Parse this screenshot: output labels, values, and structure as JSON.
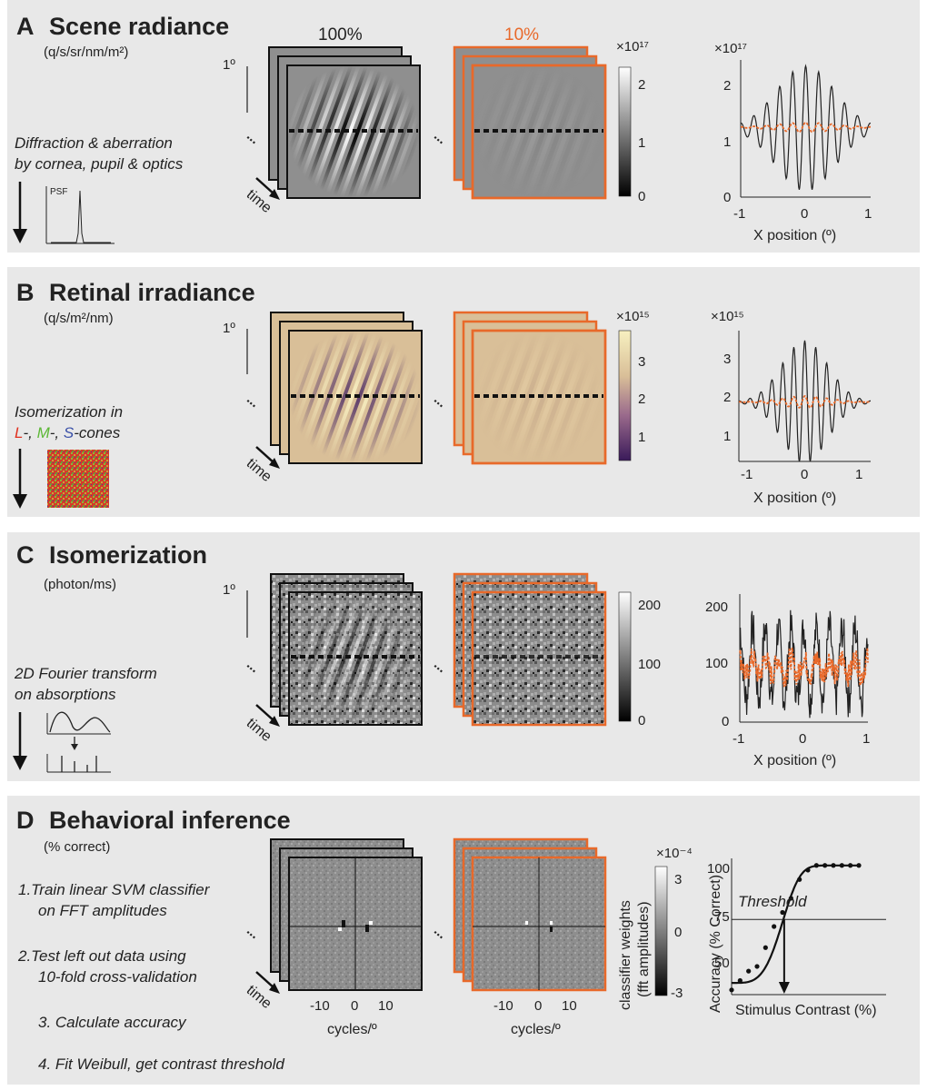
{
  "headers": {
    "full": "100%",
    "low": "10%"
  },
  "common": {
    "degree": "1º",
    "time": "time",
    "ellipsis": "..."
  },
  "colors": {
    "accent": "#e8692a",
    "panel_bg": "#e8e8e8",
    "tan": "#d9bf98"
  },
  "panelA": {
    "letter": "A",
    "title": "Scene radiance",
    "unit": "(q/s/sr/nm/m²)",
    "step1": "Diffraction & aberration",
    "step2": "by cornea, pupil & optics",
    "psf": "PSF",
    "colorbar": {
      "exp": "×10¹⁷",
      "ticks": [
        "2",
        "1",
        "0"
      ]
    },
    "plot": {
      "exp": "×10¹⁷",
      "yticks": [
        "2",
        "1",
        "0"
      ],
      "xticks": [
        "-1",
        "0",
        "1"
      ],
      "xlabel": "X position (º)"
    }
  },
  "panelB": {
    "letter": "B",
    "title": "Retinal irradiance",
    "unit": "(q/s/m²/nm)",
    "step1": "Isomerization in",
    "cones": {
      "l": "L",
      "m": "M",
      "s": "S",
      "sep1": "-, ",
      "sep2": "-, ",
      "tail": "-cones"
    },
    "colorbar": {
      "exp": "×10¹⁵",
      "ticks": [
        "3",
        "2",
        "1"
      ]
    },
    "plot": {
      "exp": "×10¹⁵",
      "yticks": [
        "3",
        "2",
        "1"
      ],
      "xticks": [
        "-1",
        "0",
        "1"
      ],
      "xlabel": "X position (º)"
    }
  },
  "panelC": {
    "letter": "C",
    "title": "Isomerization",
    "unit": "(photon/ms)",
    "step1": "2D Fourier transform",
    "step2": "on absorptions",
    "colorbar": {
      "ticks": [
        "200",
        "100",
        "0"
      ]
    },
    "plot": {
      "yticks": [
        "200",
        "100",
        "0"
      ],
      "xticks": [
        "-1",
        "0",
        "1"
      ],
      "xlabel": "X position (º)"
    }
  },
  "panelD": {
    "letter": "D",
    "title": "Behavioral inference",
    "unit": "(% correct)",
    "steps": [
      "1.Train linear SVM classifier",
      "on FFT amplitudes",
      "2.Test left out data using",
      "10-fold cross-validation",
      "3. Calculate accuracy",
      "4. Fit Weibull, get contrast threshold"
    ],
    "fft_xticks": [
      "-10",
      "0",
      "10"
    ],
    "fft_xlabel": "cycles/º",
    "colorbar": {
      "exp": "×10⁻⁴",
      "ticks": [
        "3",
        "0",
        "-3"
      ],
      "label1": "classifier weights",
      "label2": "(fft amplitudes)"
    },
    "plot": {
      "ylabel": "Accuracy (% Correct)",
      "xlabel": "Stimulus Contrast (%)",
      "yticks": [
        "100",
        "75",
        "50"
      ],
      "threshold": "Threshold"
    }
  },
  "chart_data": [
    {
      "type": "line",
      "panel": "A",
      "xlabel": "X position (º)",
      "ylabel": "",
      "xlim": [
        -1,
        1
      ],
      "ylim": [
        0,
        2.3
      ],
      "y_exponent": "×10¹⁷",
      "series": [
        {
          "color": "#222222",
          "mean": 1.15,
          "amplitude": 1.05,
          "cycles_per_deg": 5,
          "envelope_sd": 0.45
        },
        {
          "color": "#e8692a",
          "mean": 1.17,
          "amplitude": 0.08,
          "cycles_per_deg": 5,
          "envelope_sd": 0.45
        }
      ]
    },
    {
      "type": "line",
      "panel": "B",
      "xlabel": "X position (º)",
      "ylabel": "",
      "xlim": [
        -1.2,
        1.2
      ],
      "ylim": [
        0.5,
        3.8
      ],
      "y_exponent": "×10¹⁵",
      "series": [
        {
          "color": "#222222",
          "mean": 2.0,
          "amplitude": 1.55,
          "cycles_per_deg": 5,
          "envelope_sd": 0.42
        },
        {
          "color": "#e8692a",
          "mean": 2.0,
          "amplitude": 0.15,
          "cycles_per_deg": 5,
          "envelope_sd": 0.42
        }
      ]
    },
    {
      "type": "line",
      "panel": "C",
      "xlabel": "X position (º)",
      "ylabel": "",
      "xlim": [
        -1,
        1
      ],
      "ylim": [
        0,
        220
      ],
      "series": [
        {
          "color": "#222222",
          "mean": 100,
          "amplitude": 60,
          "cycles_per_deg": 5,
          "noise": 35
        },
        {
          "color": "#e8692a",
          "mean": 95,
          "amplitude": 15,
          "cycles_per_deg": 5,
          "noise": 20
        }
      ]
    },
    {
      "type": "scatter",
      "panel": "D",
      "xlabel": "Stimulus Contrast (%)",
      "ylabel": "Accuracy (% Correct)",
      "ylim": [
        45,
        103
      ],
      "threshold_accuracy": 77,
      "points": [
        {
          "x": 0,
          "y": 47
        },
        {
          "x": 1,
          "y": 51
        },
        {
          "x": 2,
          "y": 55
        },
        {
          "x": 3,
          "y": 57
        },
        {
          "x": 4,
          "y": 65
        },
        {
          "x": 5,
          "y": 74
        },
        {
          "x": 6,
          "y": 80
        },
        {
          "x": 7,
          "y": 86
        },
        {
          "x": 8,
          "y": 94
        },
        {
          "x": 9,
          "y": 98
        },
        {
          "x": 10,
          "y": 100
        },
        {
          "x": 11,
          "y": 100
        },
        {
          "x": 12,
          "y": 100
        },
        {
          "x": 13,
          "y": 100
        },
        {
          "x": 14,
          "y": 100
        },
        {
          "x": 15,
          "y": 100
        }
      ]
    }
  ]
}
